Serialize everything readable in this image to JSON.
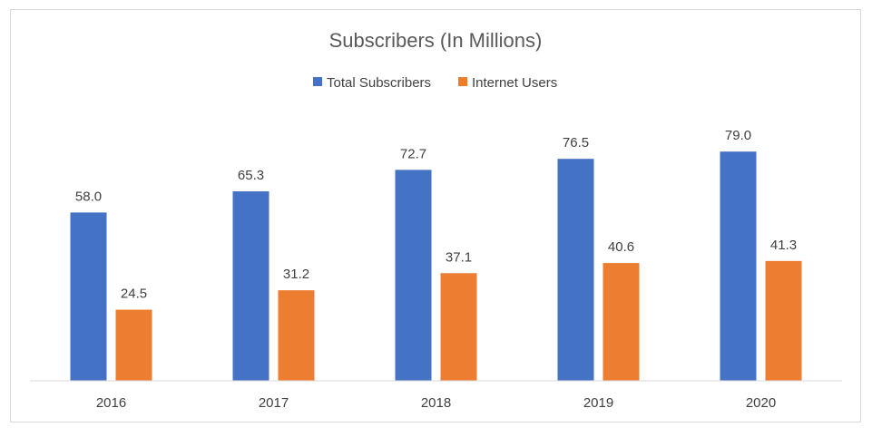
{
  "chart_data": {
    "type": "bar",
    "title": "Subscribers (In Millions)",
    "categories": [
      "2016",
      "2017",
      "2018",
      "2019",
      "2020"
    ],
    "series": [
      {
        "name": "Total Subscribers",
        "color": "#4472c4",
        "values": [
          58.0,
          65.3,
          72.7,
          76.5,
          79.0
        ]
      },
      {
        "name": "Internet Users",
        "color": "#ed7d31",
        "values": [
          24.5,
          31.2,
          37.1,
          40.6,
          41.3
        ]
      }
    ],
    "value_labels": [
      [
        "58.0",
        "65.3",
        "72.7",
        "76.5",
        "79.0"
      ],
      [
        "24.5",
        "31.2",
        "37.1",
        "40.6",
        "41.3"
      ]
    ],
    "ylim": [
      0,
      100
    ],
    "legend_position": "top-center",
    "grid": false,
    "axis_color": "#d9d9d9"
  }
}
